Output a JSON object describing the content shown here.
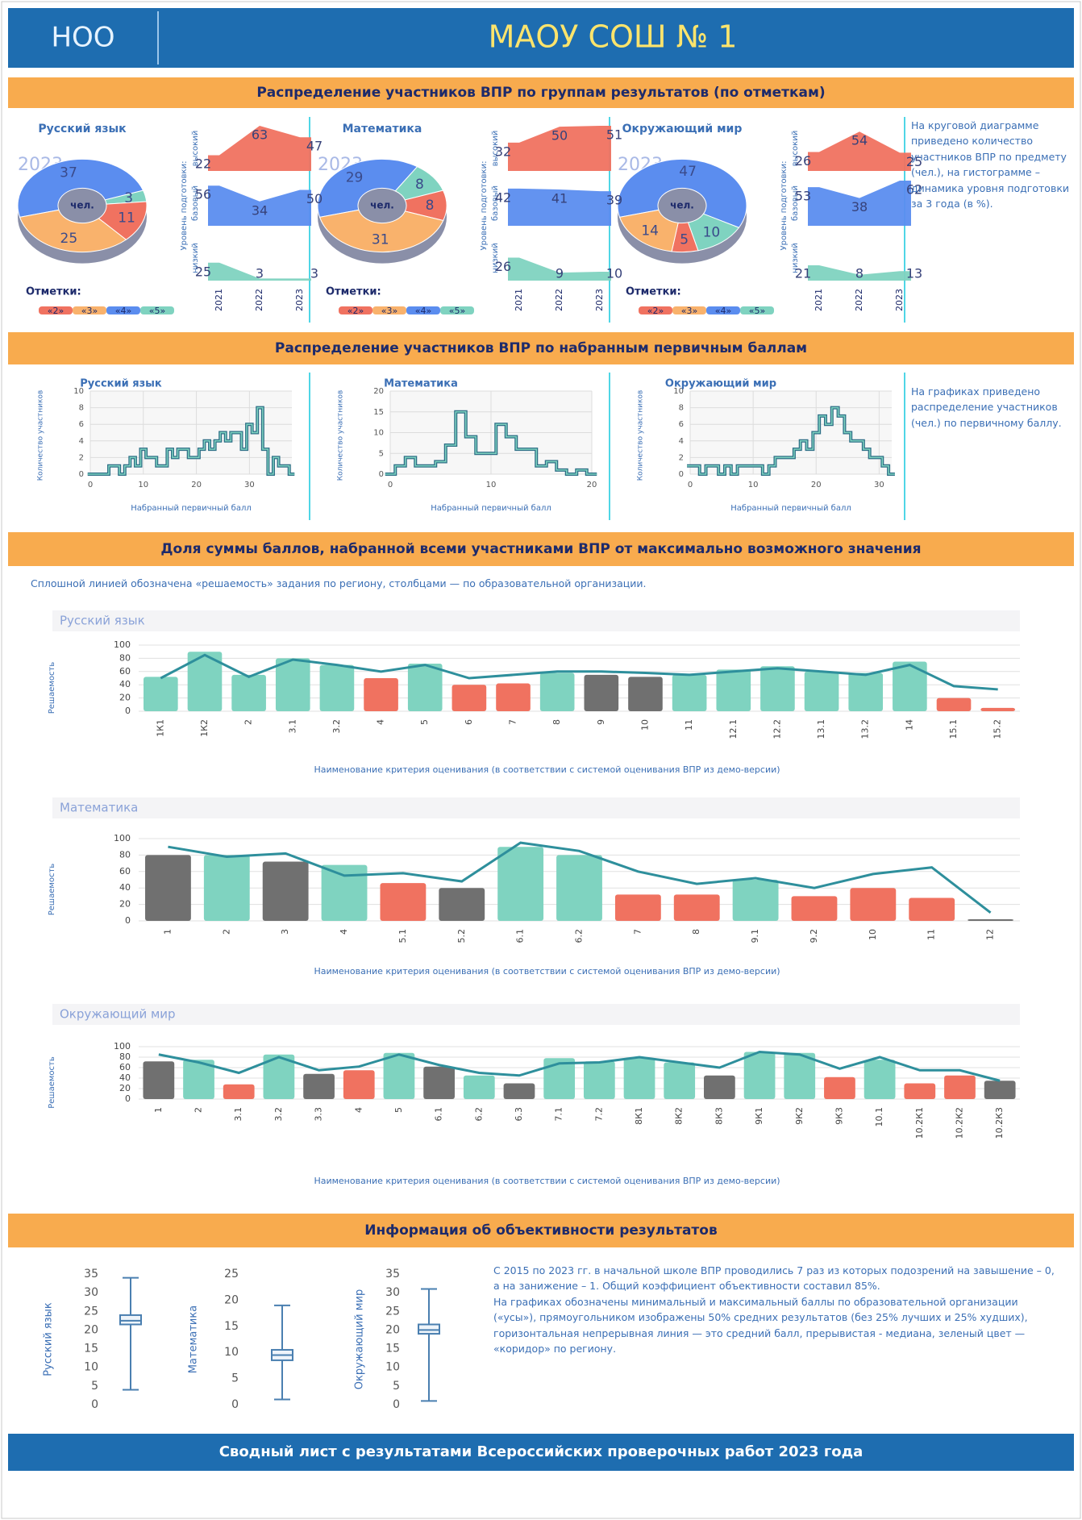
{
  "header": {
    "level": "НОО",
    "school": "МАОУ СОШ № 1"
  },
  "sections": [
    "Распределение участников ВПР по группам результатов (по отметкам)",
    "Распределение участников ВПР по набранным первичным баллам",
    "Доля суммы баллов, набранной всеми участниками ВПР от максимально возможного значения",
    "Информация об объективности результатов"
  ],
  "notes": {
    "marks": "На круговой диаграмме приведено количество участников ВПР по предмету (чел.), на гистограмме – динамика уровня подготовки за 3 года (в %).",
    "scores": "На графиках приведено распределение участников (чел.) по первичному баллу.",
    "solvability": "Сплошной линией обозначена «решаемость» задания по региону, столбцами — по образовательной организации.",
    "objectivity": [
      "С 2015 по 2023 гг. в начальной школе ВПР проводились 7 раз из которых подозрений на завышение – 0, а на занижение – 1. Общий коэффициент объективности составил 85%.",
      "На графиках обозначены минимальный и максимальный баллы по образовательной организации («усы»), прямоугольником изображены 50% средних результатов (без 25% лучших и 25% худших), горизонтальная непрерывная линия — это средний балл, прерывистая - медиана, зеленый цвет — «коридор» по региону."
    ]
  },
  "footer": "Сводный лист с результатами Всероссийских проверочных работ 2023 года",
  "chart_data": [
    {
      "type": "pie",
      "title": "Русский язык",
      "year": "2023",
      "center_label": "чел.",
      "legend_title": "Отметки:",
      "categories": [
        "«2»",
        "«3»",
        "«4»",
        "«5»"
      ],
      "values": [
        11,
        25,
        37,
        3
      ],
      "colors": [
        "#f07260",
        "#f9b26c",
        "#5b8def",
        "#7fd3c0"
      ]
    },
    {
      "type": "pie",
      "title": "Математика",
      "year": "2023",
      "center_label": "чел.",
      "legend_title": "Отметки:",
      "categories": [
        "«2»",
        "«3»",
        "«4»",
        "«5»"
      ],
      "values": [
        8,
        31,
        29,
        8
      ],
      "colors": [
        "#f07260",
        "#f9b26c",
        "#5b8def",
        "#7fd3c0"
      ]
    },
    {
      "type": "pie",
      "title": "Окружающий мир",
      "year": "2023",
      "center_label": "чел.",
      "legend_title": "Отметки:",
      "categories": [
        "«2»",
        "«3»",
        "«4»",
        "«5»"
      ],
      "values": [
        5,
        14,
        47,
        10
      ],
      "colors": [
        "#f07260",
        "#f9b26c",
        "#5b8def",
        "#7fd3c0"
      ]
    },
    {
      "type": "area",
      "y_label": "Уровень подготовки:",
      "categories": [
        "2021",
        "2022",
        "2023"
      ],
      "series": [
        {
          "name": "высокий",
          "color": "#f07260",
          "values": [
            22,
            63,
            47
          ]
        },
        {
          "name": "базовый",
          "color": "#5b8def",
          "values": [
            56,
            34,
            50
          ]
        },
        {
          "name": "низкий",
          "color": "#7fd3c0",
          "values": [
            25,
            3,
            3
          ]
        }
      ]
    },
    {
      "type": "area",
      "y_label": "Уровень подготовки:",
      "categories": [
        "2021",
        "2022",
        "2023"
      ],
      "series": [
        {
          "name": "высокий",
          "color": "#f07260",
          "values": [
            32,
            50,
            51
          ]
        },
        {
          "name": "базовый",
          "color": "#5b8def",
          "values": [
            42,
            41,
            39
          ]
        },
        {
          "name": "низкий",
          "color": "#7fd3c0",
          "values": [
            26,
            9,
            10
          ]
        }
      ]
    },
    {
      "type": "area",
      "y_label": "Уровень подготовки:",
      "categories": [
        "2021",
        "2022",
        "2023"
      ],
      "series": [
        {
          "name": "высокий",
          "color": "#f07260",
          "values": [
            26,
            54,
            25
          ]
        },
        {
          "name": "базовый",
          "color": "#5b8def",
          "values": [
            53,
            38,
            62
          ]
        },
        {
          "name": "низкий",
          "color": "#7fd3c0",
          "values": [
            21,
            8,
            13
          ]
        }
      ]
    },
    {
      "type": "step",
      "title": "Русский язык",
      "x_label": "Набранный первичный балл",
      "y_label": "Количество участников",
      "color": "#2c6e86",
      "x": [
        0,
        1,
        2,
        3,
        4,
        5,
        6,
        7,
        8,
        9,
        10,
        11,
        12,
        13,
        14,
        15,
        16,
        17,
        18,
        19,
        20,
        21,
        22,
        23,
        24,
        25,
        26,
        27,
        28,
        29,
        30,
        31,
        32,
        33,
        34,
        35,
        36,
        37,
        38
      ],
      "values": [
        0,
        0,
        0,
        0,
        1,
        1,
        0,
        1,
        2,
        1,
        3,
        2,
        2,
        1,
        1,
        3,
        2,
        3,
        3,
        2,
        2,
        3,
        4,
        3,
        4,
        5,
        4,
        5,
        5,
        3,
        6,
        5,
        8,
        3,
        0,
        2,
        1,
        1,
        0
      ],
      "xlim": [
        0,
        38
      ],
      "xticks": [
        0,
        10,
        20,
        30
      ],
      "ylim": [
        0,
        10
      ],
      "yticks": [
        0,
        2,
        4,
        6,
        8,
        10
      ],
      "grid": true
    },
    {
      "type": "step",
      "title": "Математика",
      "x_label": "Набранный первичный балл",
      "y_label": "Количество участников",
      "color": "#2c6e86",
      "x": [
        0,
        1,
        2,
        3,
        4,
        5,
        6,
        7,
        8,
        9,
        10,
        11,
        12,
        13,
        14,
        15,
        16,
        17,
        18,
        19,
        20
      ],
      "values": [
        0,
        2,
        4,
        2,
        2,
        3,
        7,
        15,
        9,
        5,
        5,
        12,
        9,
        6,
        6,
        2,
        3,
        1,
        0,
        1,
        0
      ],
      "xlim": [
        0,
        20
      ],
      "xticks": [
        0,
        10,
        20
      ],
      "ylim": [
        0,
        20
      ],
      "yticks": [
        0,
        5,
        10,
        15,
        20
      ],
      "grid": true
    },
    {
      "type": "step",
      "title": "Окружающий мир",
      "x_label": "Набранный первичный балл",
      "y_label": "Количество участников",
      "color": "#2c6e86",
      "x": [
        0,
        1,
        2,
        3,
        4,
        5,
        6,
        7,
        8,
        9,
        10,
        11,
        12,
        13,
        14,
        15,
        16,
        17,
        18,
        19,
        20,
        21,
        22,
        23,
        24,
        25,
        26,
        27,
        28,
        29,
        30,
        31,
        32
      ],
      "values": [
        1,
        1,
        0,
        1,
        1,
        0,
        1,
        0,
        1,
        1,
        1,
        1,
        0,
        1,
        2,
        2,
        2,
        3,
        4,
        3,
        5,
        7,
        6,
        8,
        7,
        5,
        4,
        4,
        3,
        2,
        2,
        1,
        0
      ],
      "xlim": [
        0,
        32
      ],
      "xticks": [
        0,
        10,
        20,
        30
      ],
      "ylim": [
        0,
        10
      ],
      "yticks": [
        0,
        2,
        4,
        6,
        8,
        10
      ],
      "grid": true
    },
    {
      "type": "bar",
      "title": "Русский язык",
      "x_label": "Наименование критерия оценивания (в соответствии с системой оценивания ВПР из демо-версии)",
      "y_label": "Решаемость",
      "categories": [
        "1К1",
        "1К2",
        "2",
        "3.1",
        "3.2",
        "4",
        "5",
        "6",
        "7",
        "8",
        "9",
        "10",
        "11",
        "12.1",
        "12.2",
        "13.1",
        "13.2",
        "14",
        "15.1",
        "15.2"
      ],
      "series": [
        {
          "type": "bar",
          "values": [
            52,
            90,
            55,
            80,
            70,
            50,
            72,
            40,
            42,
            58,
            55,
            52,
            55,
            63,
            68,
            60,
            58,
            75,
            20,
            5
          ],
          "colors": [
            "#7fd3c0",
            "#7fd3c0",
            "#7fd3c0",
            "#7fd3c0",
            "#7fd3c0",
            "#f07260",
            "#7fd3c0",
            "#f07260",
            "#f07260",
            "#7fd3c0",
            "#707070",
            "#707070",
            "#7fd3c0",
            "#7fd3c0",
            "#7fd3c0",
            "#7fd3c0",
            "#7fd3c0",
            "#7fd3c0",
            "#f07260",
            "#f07260"
          ]
        },
        {
          "type": "line",
          "color": "#2e8f9c",
          "values": [
            50,
            85,
            52,
            78,
            70,
            60,
            70,
            50,
            55,
            60,
            60,
            58,
            55,
            60,
            65,
            60,
            55,
            70,
            38,
            33
          ]
        }
      ],
      "ylim": [
        0,
        100
      ],
      "yticks": [
        0,
        20,
        40,
        60,
        80,
        100
      ],
      "grid": true
    },
    {
      "type": "bar",
      "title": "Математика",
      "x_label": "Наименование критерия оценивания (в соответствии с системой оценивания ВПР из демо-версии)",
      "y_label": "Решаемость",
      "categories": [
        "1",
        "2",
        "3",
        "4",
        "5.1",
        "5.2",
        "6.1",
        "6.2",
        "7",
        "8",
        "9.1",
        "9.2",
        "10",
        "11",
        "12"
      ],
      "series": [
        {
          "type": "bar",
          "values": [
            80,
            80,
            72,
            68,
            46,
            40,
            90,
            80,
            32,
            32,
            50,
            30,
            40,
            28,
            2
          ],
          "colors": [
            "#707070",
            "#7fd3c0",
            "#707070",
            "#7fd3c0",
            "#f07260",
            "#707070",
            "#7fd3c0",
            "#7fd3c0",
            "#f07260",
            "#f07260",
            "#7fd3c0",
            "#f07260",
            "#f07260",
            "#f07260",
            "#707070"
          ]
        },
        {
          "type": "line",
          "color": "#2e8f9c",
          "values": [
            90,
            78,
            82,
            55,
            58,
            48,
            95,
            85,
            60,
            45,
            52,
            40,
            57,
            65,
            10
          ]
        }
      ],
      "ylim": [
        0,
        100
      ],
      "yticks": [
        0,
        20,
        40,
        60,
        80,
        100
      ],
      "grid": true
    },
    {
      "type": "bar",
      "title": "Окружающий мир",
      "x_label": "Наименование критерия оценивания (в соответствии с системой оценивания ВПР из демо-версии)",
      "y_label": "Решаемость",
      "categories": [
        "1",
        "2",
        "3.1",
        "3.2",
        "3.3",
        "4",
        "5",
        "6.1",
        "6.2",
        "6.3",
        "7.1",
        "7.2",
        "8К1",
        "8К2",
        "8К3",
        "9К1",
        "9К2",
        "9К3",
        "10.1",
        "10.2К1",
        "10.2К2",
        "10.2К3"
      ],
      "series": [
        {
          "type": "bar",
          "values": [
            72,
            75,
            28,
            85,
            48,
            55,
            88,
            62,
            45,
            30,
            78,
            72,
            78,
            70,
            45,
            90,
            88,
            42,
            75,
            30,
            45,
            35
          ],
          "colors": [
            "#707070",
            "#7fd3c0",
            "#f07260",
            "#7fd3c0",
            "#707070",
            "#f07260",
            "#7fd3c0",
            "#707070",
            "#7fd3c0",
            "#707070",
            "#7fd3c0",
            "#7fd3c0",
            "#7fd3c0",
            "#7fd3c0",
            "#707070",
            "#7fd3c0",
            "#7fd3c0",
            "#f07260",
            "#7fd3c0",
            "#f07260",
            "#f07260",
            "#707070"
          ]
        },
        {
          "type": "line",
          "color": "#2e8f9c",
          "values": [
            85,
            70,
            50,
            80,
            55,
            62,
            85,
            65,
            50,
            45,
            68,
            70,
            80,
            70,
            60,
            90,
            85,
            58,
            80,
            55,
            55,
            35
          ]
        }
      ],
      "ylim": [
        0,
        100
      ],
      "yticks": [
        0,
        20,
        40,
        60,
        80,
        100
      ],
      "grid": true
    },
    {
      "type": "box",
      "y_label": "Русский язык",
      "stats": {
        "min": 4,
        "q1": 21.5,
        "median": 22.5,
        "q3": 24,
        "max": 34
      },
      "ylim": [
        0,
        35
      ],
      "yticks": [
        0,
        5,
        10,
        15,
        20,
        25,
        30,
        35
      ]
    },
    {
      "type": "box",
      "y_label": "Математика",
      "stats": {
        "min": 1,
        "q1": 8.5,
        "median": 9.5,
        "q3": 10.5,
        "max": 19
      },
      "ylim": [
        0,
        25
      ],
      "yticks": [
        0,
        5,
        10,
        15,
        20,
        25
      ]
    },
    {
      "type": "box",
      "y_label": "Окружающий мир",
      "stats": {
        "min": 1,
        "q1": 19,
        "median": 20,
        "q3": 21.5,
        "max": 31
      },
      "ylim": [
        0,
        35
      ],
      "yticks": [
        0,
        5,
        10,
        15,
        20,
        25,
        30,
        35
      ]
    }
  ]
}
